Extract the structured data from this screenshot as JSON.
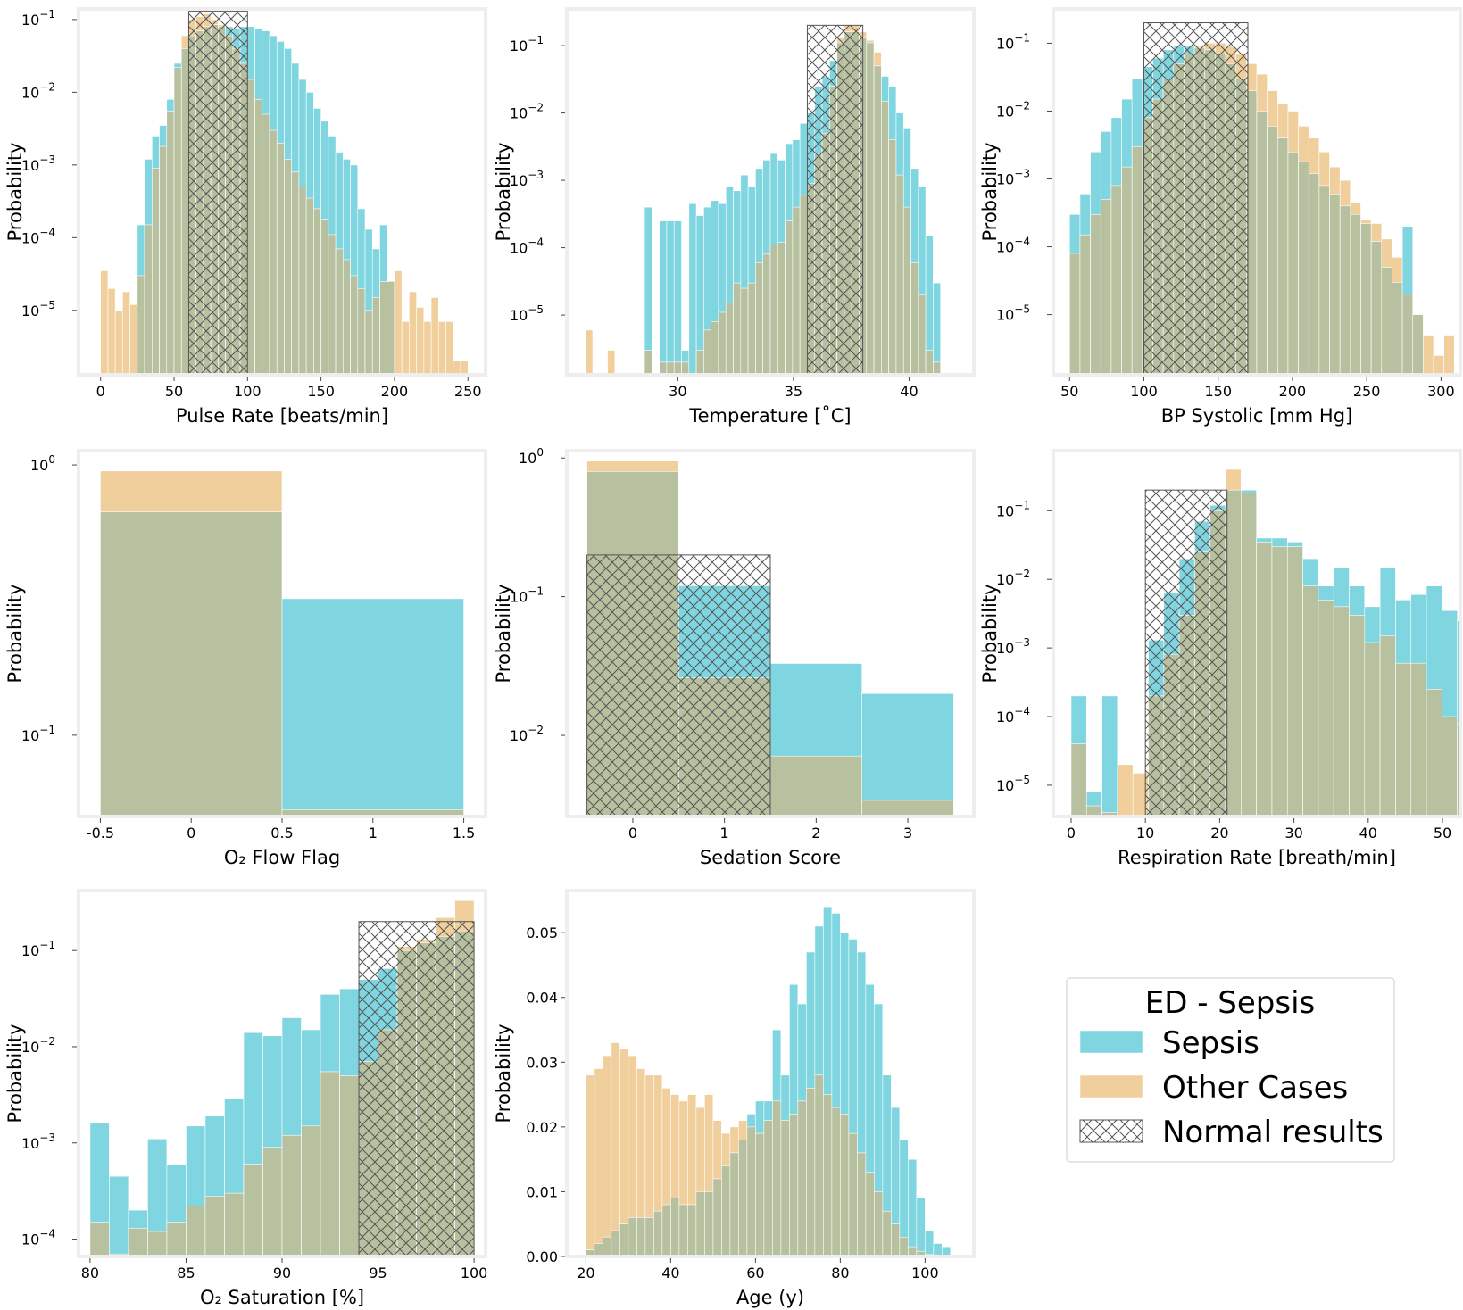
{
  "colors": {
    "sepsis": "#7fd6e0",
    "other": "#f0cf9d",
    "overlap": "#b7c09f",
    "normal_hatch": "#555555",
    "frame": "#eeeeee"
  },
  "legend": {
    "title": "ED - Sepsis",
    "items": [
      {
        "key": "sepsis",
        "label": "Sepsis"
      },
      {
        "key": "other",
        "label": "Other Cases"
      },
      {
        "key": "normal",
        "label": "Normal results"
      }
    ]
  },
  "chart_data": [
    {
      "type": "bar",
      "scale": "log",
      "xlabel": "Pulse Rate [beats/min]",
      "ylabel": "Probability",
      "xlim": [
        -15,
        262
      ],
      "ylim": [
        1.3e-06,
        0.14
      ],
      "xticks": [
        0,
        50,
        100,
        150,
        200,
        250
      ],
      "yticks": [
        {
          "v": 0.1,
          "t": "10",
          "e": "-1"
        },
        {
          "v": 0.01,
          "t": "10",
          "e": "-2"
        },
        {
          "v": 0.001,
          "t": "10",
          "e": "-3"
        },
        {
          "v": 0.0001,
          "t": "10",
          "e": "-4"
        },
        {
          "v": 1e-05,
          "t": "10",
          "e": "-5"
        }
      ],
      "bin_start": 0,
      "bin_width": 5,
      "series": [
        {
          "key": "sepsis",
          "name": "Sepsis",
          "values": [
            0,
            0,
            0,
            0,
            0,
            0.00015,
            0.0012,
            0.0025,
            0.0035,
            0.008,
            0.025,
            0.04,
            0.06,
            0.07,
            0.08,
            0.085,
            0.08,
            0.08,
            0.075,
            0.08,
            0.08,
            0.075,
            0.07,
            0.06,
            0.05,
            0.04,
            0.025,
            0.015,
            0.01,
            0.006,
            0.004,
            0.0025,
            0.0015,
            0.0012,
            0.001,
            0.00025,
            0.00013,
            7e-05,
            0.00015,
            2.5e-05,
            0,
            0,
            0,
            0,
            0,
            0,
            0,
            0,
            0,
            0
          ]
        },
        {
          "key": "other",
          "name": "Other Cases",
          "values": [
            3.5e-05,
            2e-05,
            1e-05,
            1.8e-05,
            1.2e-05,
            3e-05,
            0.00015,
            0.0009,
            0.0018,
            0.0055,
            0.022,
            0.06,
            0.1,
            0.11,
            0.12,
            0.1,
            0.085,
            0.06,
            0.04,
            0.025,
            0.015,
            0.008,
            0.005,
            0.003,
            0.002,
            0.0012,
            0.0008,
            0.0005,
            0.00035,
            0.00025,
            0.00018,
            0.00011,
            7e-05,
            5e-05,
            3e-05,
            2e-05,
            1e-05,
            1.5e-05,
            2.5e-05,
            2.5e-05,
            3.5e-05,
            7e-06,
            1.8e-05,
            1.1e-05,
            7e-06,
            1.5e-05,
            7e-06,
            7e-06,
            2e-06,
            2e-06
          ]
        }
      ],
      "normal_range": [
        60,
        100
      ],
      "normal_height": 0.13
    },
    {
      "type": "bar",
      "scale": "log",
      "xlabel": "Temperature [˚C]",
      "ylabel": "Probability",
      "xlim": [
        25.2,
        42.8
      ],
      "ylim": [
        1.3e-06,
        0.35
      ],
      "xticks": [
        30,
        35,
        40
      ],
      "yticks": [
        {
          "v": 0.1,
          "t": "10",
          "e": "-1"
        },
        {
          "v": 0.01,
          "t": "10",
          "e": "-2"
        },
        {
          "v": 0.001,
          "t": "10",
          "e": "-3"
        },
        {
          "v": 0.0001,
          "t": "10",
          "e": "-4"
        },
        {
          "v": 1e-05,
          "t": "10",
          "e": "-5"
        }
      ],
      "bin_start": 26,
      "bin_width": 0.32,
      "series": [
        {
          "key": "sepsis",
          "name": "Sepsis",
          "values": [
            0,
            0,
            0,
            0,
            0,
            0,
            0,
            0,
            0.0004,
            0,
            0.00025,
            0.00025,
            0.00025,
            3e-06,
            0.00045,
            0.0003,
            0.0004,
            0.0005,
            0.00045,
            0.0008,
            0.0007,
            0.0012,
            0.0008,
            0.0015,
            0.002,
            0.0025,
            0.002,
            0.0035,
            0.004,
            0.007,
            0.01,
            0.025,
            0.035,
            0.06,
            0.11,
            0.16,
            0.16,
            0.13,
            0.11,
            0.05,
            0.035,
            0.025,
            0.01,
            0.006,
            0.0015,
            0.0008,
            0.00015,
            3e-05,
            0,
            0,
            0,
            0
          ]
        },
        {
          "key": "other",
          "name": "Other Cases",
          "values": [
            6e-06,
            0,
            0,
            3e-06,
            0,
            0,
            0,
            0,
            3e-06,
            0,
            2e-06,
            2e-06,
            2e-06,
            2e-06,
            0,
            3e-06,
            6e-06,
            8e-06,
            1.1e-05,
            1.5e-05,
            3e-05,
            2.5e-05,
            3e-05,
            6e-05,
            8e-05,
            0.00011,
            0.00012,
            0.00025,
            0.0004,
            0.0006,
            0.0009,
            0.0025,
            0.005,
            0.025,
            0.13,
            0.2,
            0.2,
            0.16,
            0.12,
            0.08,
            0.015,
            0.004,
            0.0012,
            0.0004,
            6e-05,
            2e-05,
            3e-06,
            2e-06,
            0,
            0,
            0,
            0
          ]
        }
      ],
      "normal_range": [
        35.6,
        38.0
      ],
      "normal_height": 0.2
    },
    {
      "type": "bar",
      "scale": "log",
      "xlabel": "BP Systolic [mm Hg]",
      "ylabel": "Probability",
      "xlim": [
        39,
        313
      ],
      "ylim": [
        1.3e-06,
        0.32
      ],
      "xticks": [
        50,
        100,
        150,
        200,
        250,
        300
      ],
      "yticks": [
        {
          "v": 0.1,
          "t": "10",
          "e": "-1"
        },
        {
          "v": 0.01,
          "t": "10",
          "e": "-2"
        },
        {
          "v": 0.001,
          "t": "10",
          "e": "-3"
        },
        {
          "v": 0.0001,
          "t": "10",
          "e": "-4"
        },
        {
          "v": 1e-05,
          "t": "10",
          "e": "-5"
        }
      ],
      "bin_start": 50,
      "bin_width": 7,
      "series": [
        {
          "key": "sepsis",
          "name": "Sepsis",
          "values": [
            0.0003,
            0.0006,
            0.0025,
            0.005,
            0.008,
            0.015,
            0.03,
            0.045,
            0.06,
            0.08,
            0.09,
            0.09,
            0.085,
            0.08,
            0.07,
            0.05,
            0.03,
            0.02,
            0.01,
            0.006,
            0.004,
            0.0025,
            0.0018,
            0.0012,
            0.0008,
            0.0006,
            0.0004,
            0.0003,
            0.00022,
            0.00012,
            5e-05,
            3e-05,
            0.0002,
            1e-05,
            0,
            0,
            0,
            0,
            0,
            0
          ]
        },
        {
          "key": "other",
          "name": "Other Cases",
          "values": [
            8e-05,
            0.00015,
            0.0003,
            0.0005,
            0.0008,
            0.0015,
            0.003,
            0.008,
            0.015,
            0.03,
            0.05,
            0.07,
            0.09,
            0.1,
            0.1,
            0.09,
            0.07,
            0.05,
            0.035,
            0.02,
            0.013,
            0.01,
            0.006,
            0.004,
            0.0025,
            0.0015,
            0.00095,
            0.00045,
            0.00025,
            0.00022,
            0.00013,
            7e-05,
            2e-05,
            1e-05,
            5e-06,
            2.5e-06,
            5e-06,
            0,
            2.5e-06,
            0
          ]
        }
      ],
      "normal_range": [
        100,
        170
      ],
      "normal_height": 0.2
    },
    {
      "type": "bar",
      "scale": "log",
      "xlabel": "O₂ Flow Flag",
      "ylabel": "Probability",
      "xlim": [
        -0.62,
        1.62
      ],
      "ylim": [
        0.05,
        1.13
      ],
      "xticks": [
        -0.5,
        0.0,
        0.5,
        1.0,
        1.5
      ],
      "yticks": [
        {
          "v": 1.0,
          "t": "10",
          "e": "0"
        },
        {
          "v": 0.1,
          "t": "10",
          "e": "-1"
        }
      ],
      "bin_start": -0.5,
      "bin_width": 1.0,
      "series": [
        {
          "key": "sepsis",
          "name": "Sepsis",
          "values": [
            0.67,
            0.32
          ]
        },
        {
          "key": "other",
          "name": "Other Cases",
          "values": [
            0.95,
            0.053
          ]
        }
      ],
      "normal_range": null,
      "normal_height": 0
    },
    {
      "type": "bar",
      "scale": "log",
      "xlabel": "Sedation Score",
      "ylabel": "Probability",
      "xlim": [
        -0.72,
        3.72
      ],
      "ylim": [
        0.0026,
        1.13
      ],
      "xticks": [
        0,
        1,
        2,
        3
      ],
      "yticks": [
        {
          "v": 1.0,
          "t": "10",
          "e": "0"
        },
        {
          "v": 0.1,
          "t": "10",
          "e": "-1"
        },
        {
          "v": 0.01,
          "t": "10",
          "e": "-2"
        }
      ],
      "bin_start": -0.5,
      "bin_width": 1.0,
      "series": [
        {
          "key": "sepsis",
          "name": "Sepsis",
          "values": [
            0.8,
            0.12,
            0.033,
            0.02
          ]
        },
        {
          "key": "other",
          "name": "Other Cases",
          "values": [
            0.95,
            0.026,
            0.0071,
            0.0034
          ]
        }
      ],
      "normal_range": [
        -0.5,
        1.5
      ],
      "normal_height": 0.2
    },
    {
      "type": "bar",
      "scale": "log",
      "xlabel": "Respiration Rate [breath/min]",
      "ylabel": "Probability",
      "xlim": [
        -2.4,
        52.4
      ],
      "ylim": [
        3.5e-06,
        0.75
      ],
      "xticks": [
        0,
        10,
        20,
        30,
        40,
        50
      ],
      "yticks": [
        {
          "v": 0.1,
          "t": "10",
          "e": "-1"
        },
        {
          "v": 0.01,
          "t": "10",
          "e": "-2"
        },
        {
          "v": 0.001,
          "t": "10",
          "e": "-3"
        },
        {
          "v": 0.0001,
          "t": "10",
          "e": "-4"
        },
        {
          "v": 1e-05,
          "t": "10",
          "e": "-5"
        }
      ],
      "bin_start": 0,
      "bin_width": 2.08,
      "series": [
        {
          "key": "sepsis",
          "name": "Sepsis",
          "values": [
            0.0002,
            8e-06,
            0.0002,
            0,
            0,
            0.0013,
            0.0065,
            0.02,
            0.07,
            0.12,
            0.2,
            0.2,
            0.04,
            0.04,
            0.035,
            0.02,
            0.008,
            0.015,
            0.008,
            0.004,
            0.015,
            0.005,
            0.006,
            0.008,
            0.0035,
            0.0025
          ]
        },
        {
          "key": "other",
          "name": "Other Cases",
          "values": [
            4e-05,
            5e-06,
            4e-06,
            2e-05,
            1.5e-05,
            0.0002,
            0.0008,
            0.003,
            0.025,
            0.1,
            0.4,
            0.18,
            0.035,
            0.03,
            0.03,
            0.008,
            0.005,
            0.004,
            0.003,
            0.0012,
            0.0015,
            0.0006,
            0.0006,
            0.00025,
            0.0001,
            8e-05
          ]
        }
      ],
      "normal_range": [
        10,
        21
      ],
      "normal_height": 0.2
    },
    {
      "type": "bar",
      "scale": "log",
      "xlabel": "O₂ Saturation [%]",
      "ylabel": "Probability",
      "xlim": [
        79.4,
        100.6
      ],
      "ylim": [
        6.6e-05,
        0.42
      ],
      "xticks": [
        80,
        85,
        90,
        95,
        100
      ],
      "yticks": [
        {
          "v": 0.1,
          "t": "10",
          "e": "-1"
        },
        {
          "v": 0.01,
          "t": "10",
          "e": "-2"
        },
        {
          "v": 0.001,
          "t": "10",
          "e": "-3"
        },
        {
          "v": 0.0001,
          "t": "10",
          "e": "-4"
        }
      ],
      "bin_start": 80,
      "bin_width": 1.0,
      "series": [
        {
          "key": "sepsis",
          "name": "Sepsis",
          "values": [
            0.0016,
            0.00045,
            0.0002,
            0.0011,
            0.0006,
            0.0015,
            0.0019,
            0.0029,
            0.014,
            0.013,
            0.02,
            0.015,
            0.035,
            0.04,
            0.05,
            0.065,
            0.1,
            0.12,
            0.14,
            0.16
          ]
        },
        {
          "key": "other",
          "name": "Other Cases",
          "values": [
            0.00015,
            7e-05,
            0.00013,
            0.00012,
            0.00015,
            0.00022,
            0.00028,
            0.0003,
            0.0006,
            0.0009,
            0.0012,
            0.0015,
            0.0055,
            0.005,
            0.007,
            0.015,
            0.11,
            0.13,
            0.22,
            0.33
          ]
        }
      ],
      "normal_range": [
        94,
        100
      ],
      "normal_height": 0.2
    },
    {
      "type": "bar",
      "scale": "linear",
      "xlabel": "Age (y)",
      "ylabel": "Probability",
      "xlim": [
        15.5,
        111.5
      ],
      "ylim": [
        0,
        0.0565
      ],
      "xticks": [
        20,
        40,
        60,
        80,
        100
      ],
      "yticks": [
        {
          "v": 0.0,
          "t": "0.00"
        },
        {
          "v": 0.01,
          "t": "0.01"
        },
        {
          "v": 0.02,
          "t": "0.02"
        },
        {
          "v": 0.03,
          "t": "0.03"
        },
        {
          "v": 0.04,
          "t": "0.04"
        },
        {
          "v": 0.05,
          "t": "0.05"
        }
      ],
      "bin_start": 20,
      "bin_width": 2.0,
      "series": [
        {
          "key": "sepsis",
          "name": "Sepsis",
          "values": [
            0.001,
            0.002,
            0.003,
            0.004,
            0.005,
            0.006,
            0.006,
            0.006,
            0.007,
            0.008,
            0.009,
            0.008,
            0.008,
            0.01,
            0.01,
            0.012,
            0.014,
            0.016,
            0.018,
            0.022,
            0.024,
            0.024,
            0.035,
            0.028,
            0.042,
            0.039,
            0.047,
            0.051,
            0.054,
            0.053,
            0.05,
            0.049,
            0.047,
            0.042,
            0.039,
            0.028,
            0.023,
            0.018,
            0.015,
            0.009,
            0.004,
            0.002,
            0.0015
          ]
        },
        {
          "key": "other",
          "name": "Other Cases",
          "values": [
            0.028,
            0.029,
            0.031,
            0.033,
            0.032,
            0.031,
            0.029,
            0.028,
            0.028,
            0.026,
            0.025,
            0.024,
            0.025,
            0.023,
            0.025,
            0.021,
            0.019,
            0.02,
            0.021,
            0.02,
            0.019,
            0.021,
            0.024,
            0.021,
            0.022,
            0.024,
            0.026,
            0.028,
            0.025,
            0.023,
            0.022,
            0.019,
            0.016,
            0.013,
            0.01,
            0.007,
            0.005,
            0.003,
            0.0015,
            0.0008,
            0.0003,
            0.0001,
            0
          ]
        }
      ],
      "normal_range": null,
      "normal_height": 0
    }
  ]
}
